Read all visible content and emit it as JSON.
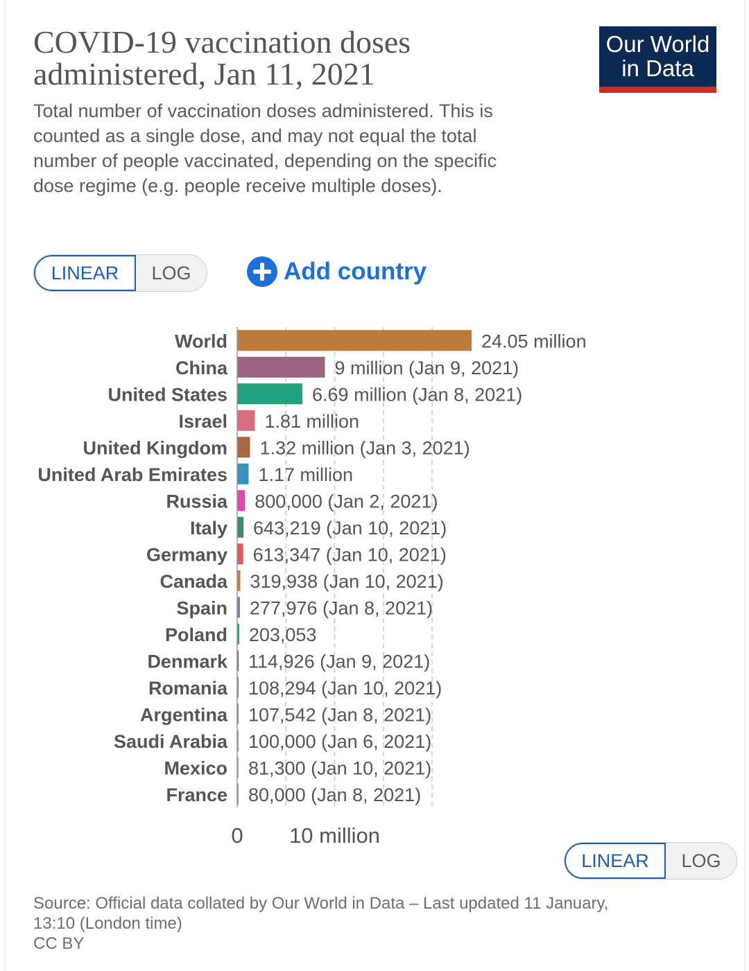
{
  "header": {
    "title": "COVID-19 vaccination doses administered, Jan 11, 2021",
    "subtitle": "Total number of vaccination doses administered. This is counted as a single dose, and may not equal the total number of people vaccinated, depending on the specific dose regime (e.g. people receive multiple doses).",
    "logo_line1": "Our World",
    "logo_line2": "in Data"
  },
  "controls": {
    "linear_label": "LINEAR",
    "log_label": "LOG",
    "add_country_label": "Add country",
    "selected_scale": "linear"
  },
  "colors": {
    "logo_bg": "#0d2a54",
    "logo_accent": "#d42b23",
    "toggle_active": "#1d5ea8",
    "add_country": "#1e6fd9"
  },
  "chart_data": {
    "type": "bar",
    "orientation": "horizontal",
    "categories": [
      "World",
      "China",
      "United States",
      "Israel",
      "United Kingdom",
      "United Arab Emirates",
      "Russia",
      "Italy",
      "Germany",
      "Canada",
      "Spain",
      "Poland",
      "Denmark",
      "Romania",
      "Argentina",
      "Saudi Arabia",
      "Mexico",
      "France"
    ],
    "values": [
      24050000,
      9000000,
      6690000,
      1810000,
      1320000,
      1170000,
      800000,
      643219,
      613347,
      319938,
      277976,
      203053,
      114926,
      108294,
      107542,
      100000,
      81300,
      80000
    ],
    "value_labels": [
      "24.05 million",
      "9 million (Jan 9, 2021)",
      "6.69 million (Jan 8, 2021)",
      "1.81 million",
      "1.32 million (Jan 3, 2021)",
      "1.17 million",
      "800,000 (Jan 2, 2021)",
      "643,219 (Jan 10, 2021)",
      "613,347 (Jan 10, 2021)",
      "319,938 (Jan 10, 2021)",
      "277,976 (Jan 8, 2021)",
      "203,053",
      "114,926 (Jan 9, 2021)",
      "108,294 (Jan 10, 2021)",
      "107,542 (Jan 8, 2021)",
      "100,000 (Jan 6, 2021)",
      "81,300 (Jan 10, 2021)",
      "80,000 (Jan 8, 2021)"
    ],
    "colors": [
      "#be7a3a",
      "#9c6382",
      "#23a07c",
      "#d86d7f",
      "#a86a45",
      "#3a91bd",
      "#e04aa5",
      "#3d8a77",
      "#e2575f",
      "#c77c3a",
      "#6a7fbf",
      "#2e9c6d",
      "#b83a4a",
      "#d65a8e",
      "#9a77b8",
      "#5eb7a4",
      "#d89a7a",
      "#9a8aa5"
    ],
    "x_ticks": [
      0,
      10000000
    ],
    "x_tick_labels": [
      "0",
      "10 million"
    ],
    "xlim": [
      0,
      24050000
    ],
    "gridlines": [
      5000000,
      10000000,
      15000000,
      20000000
    ],
    "grid": true,
    "xlabel": "",
    "ylabel": ""
  },
  "footer": {
    "source_line1": "Source: Official data collated by Our World in Data – Last updated 11 January,",
    "source_line2": "13:10 (London time)",
    "license": "CC BY"
  }
}
